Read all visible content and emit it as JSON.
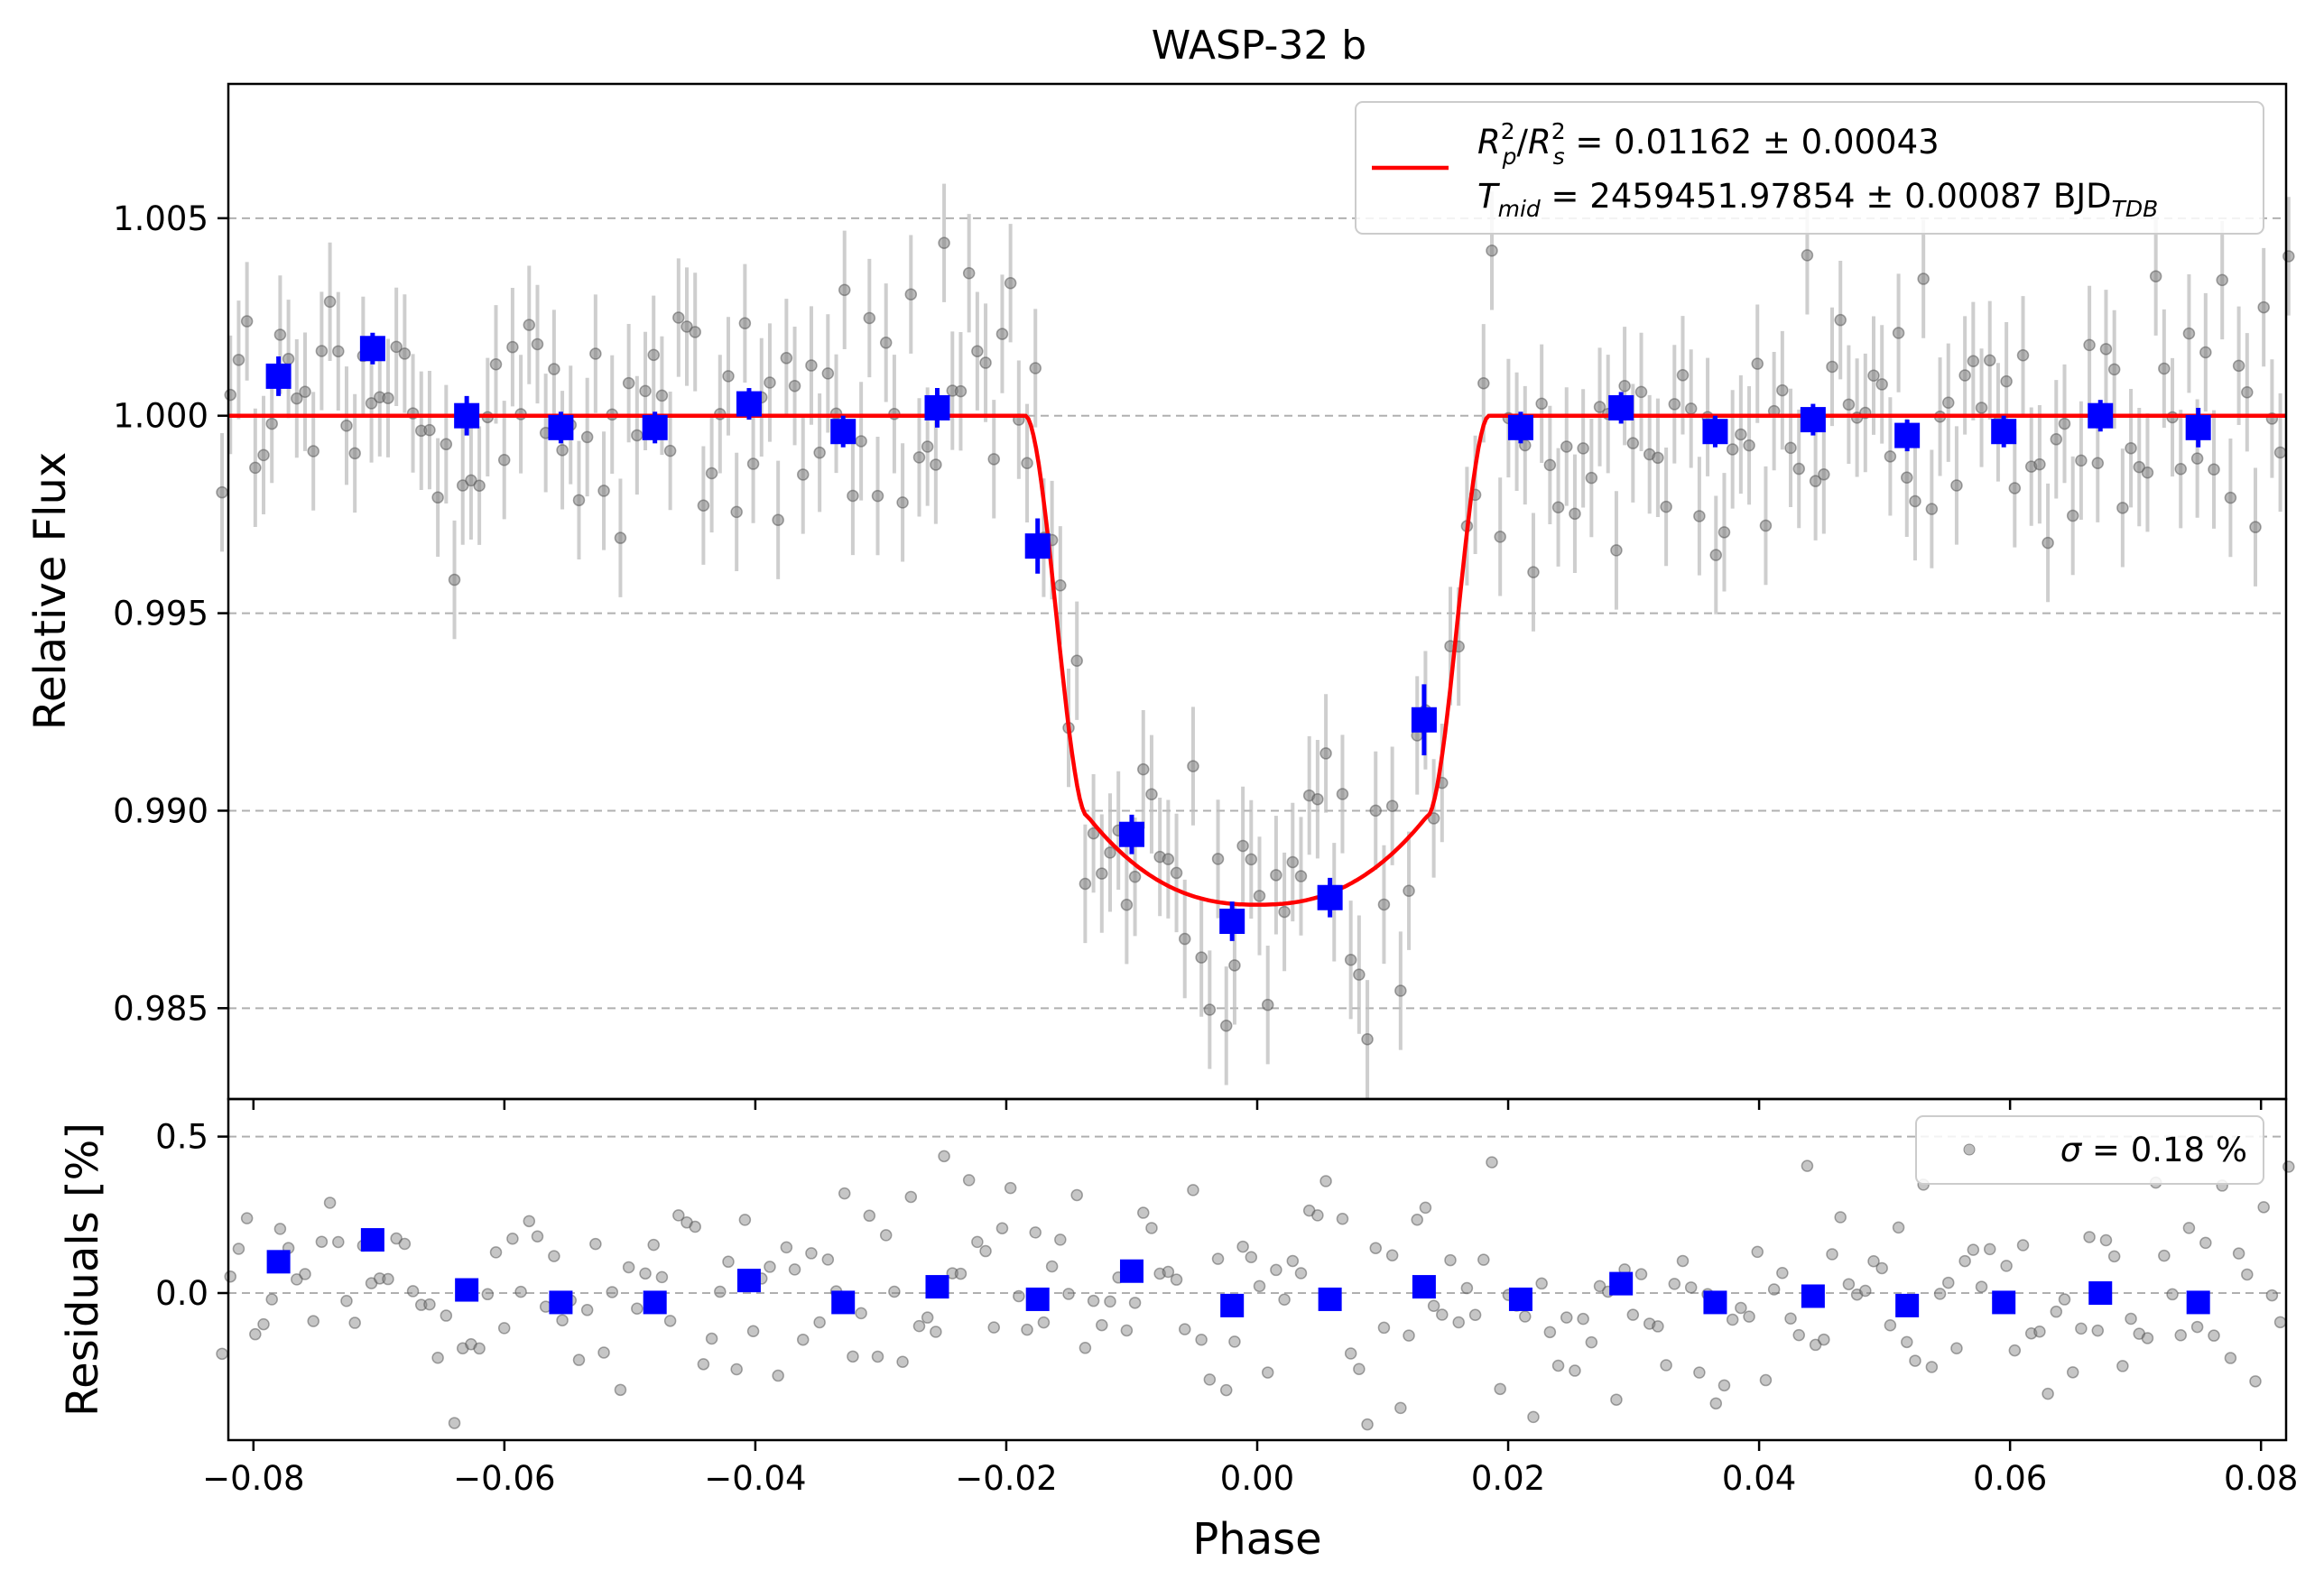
{
  "chart_data": [
    {
      "name": "light-curve",
      "type": "scatter",
      "title": "WASP-32 b",
      "xlabel": "",
      "ylabel": "Relative Flux",
      "xlim": [
        -0.082,
        0.082
      ],
      "ylim": [
        0.9827,
        1.0084
      ],
      "xticks": [
        -0.08,
        -0.06,
        -0.04,
        -0.02,
        0.0,
        0.02,
        0.04,
        0.06,
        0.08
      ],
      "yticks": [
        0.985,
        0.99,
        0.995,
        1.0,
        1.005
      ],
      "ytick_labels": [
        "0.985",
        "0.990",
        "0.995",
        "1.000",
        "1.005"
      ],
      "grid": "horizontal dashed",
      "legend": {
        "placement": "top-right",
        "line_color": "#ff0000",
        "entry1": {
          "base1": "R",
          "sup1": "2",
          "sub1": "p",
          "slash": "/",
          "base2": "R",
          "sup2": "2",
          "sub2": "s",
          "rest": " = 0.01162 ± 0.00043"
        },
        "entry2": {
          "base": "T",
          "sub": "mid",
          "rest": " = 2459451.97854 ± 0.00087 BJD",
          "unit_sub": "TDB"
        }
      },
      "model": {
        "name": "transit model",
        "color": "#ff0000",
        "depth": 0.01162,
        "t1": 0.0185,
        "t2": 0.0135,
        "floor": 0.98762,
        "inner_limb_value": 0.98985
      },
      "raw_series": {
        "name": "raw data",
        "color": "#808080",
        "x_start": -0.0825,
        "x_end": 0.0822,
        "n_points": 250,
        "error_bar_flux": 0.0015,
        "residual_scatter_pct": 0.18
      },
      "binned": {
        "name": "binned data",
        "color": "#0000ff",
        "x": [
          -0.078,
          -0.0705,
          -0.063,
          -0.0555,
          -0.048,
          -0.0405,
          -0.033,
          -0.0255,
          -0.0175,
          -0.01,
          -0.002,
          0.0058,
          0.0133,
          0.021,
          0.029,
          0.0365,
          0.0443,
          0.0518,
          0.0595,
          0.0672,
          0.075
        ],
        "y": [
          1.001,
          1.0017,
          1.0,
          0.9997,
          0.9997,
          1.0003,
          0.9996,
          1.0002,
          0.9967,
          0.9894,
          0.9872,
          0.9878,
          0.9923,
          0.9997,
          1.0002,
          0.9996,
          0.9999,
          0.9995,
          0.9996,
          1.0,
          0.9997
        ],
        "yerr": [
          0.0005,
          0.0004,
          0.0005,
          0.0004,
          0.0004,
          0.0004,
          0.0004,
          0.0005,
          0.0007,
          0.0005,
          0.0005,
          0.0005,
          0.0009,
          0.0004,
          0.0004,
          0.0004,
          0.0004,
          0.0004,
          0.0004,
          0.0004,
          0.0005
        ]
      }
    },
    {
      "name": "residuals",
      "type": "scatter",
      "title": "",
      "xlabel": "Phase",
      "ylabel": "Residuals [%]",
      "xlim": [
        -0.082,
        0.082
      ],
      "ylim": [
        -0.47,
        0.62
      ],
      "xticks": [
        -0.08,
        -0.06,
        -0.04,
        -0.02,
        0.0,
        0.02,
        0.04,
        0.06,
        0.08
      ],
      "xtick_labels": [
        "−0.08",
        "−0.06",
        "−0.04",
        "−0.02",
        "0.00",
        "0.02",
        "0.04",
        "0.06",
        "0.08"
      ],
      "yticks": [
        0.0,
        0.5
      ],
      "ytick_labels": [
        "0.0",
        "0.5"
      ],
      "grid": "horizontal dashed",
      "legend": {
        "placement": "top-right",
        "sigma_symbol": "σ",
        "sigma_text": " = 0.18 %",
        "marker_color": "#808080"
      },
      "binned_residuals": {
        "x": [
          -0.078,
          -0.0705,
          -0.063,
          -0.0555,
          -0.048,
          -0.0405,
          -0.033,
          -0.0255,
          -0.0175,
          -0.01,
          -0.002,
          0.0058,
          0.0133,
          0.021,
          0.029,
          0.0365,
          0.0443,
          0.0518,
          0.0595,
          0.0672,
          0.075
        ],
        "y": [
          0.1,
          0.17,
          0.01,
          -0.03,
          -0.03,
          0.04,
          -0.03,
          0.02,
          -0.02,
          0.07,
          -0.04,
          -0.02,
          0.02,
          -0.02,
          0.03,
          -0.03,
          -0.01,
          -0.04,
          -0.03,
          0.0,
          -0.03
        ]
      }
    }
  ]
}
